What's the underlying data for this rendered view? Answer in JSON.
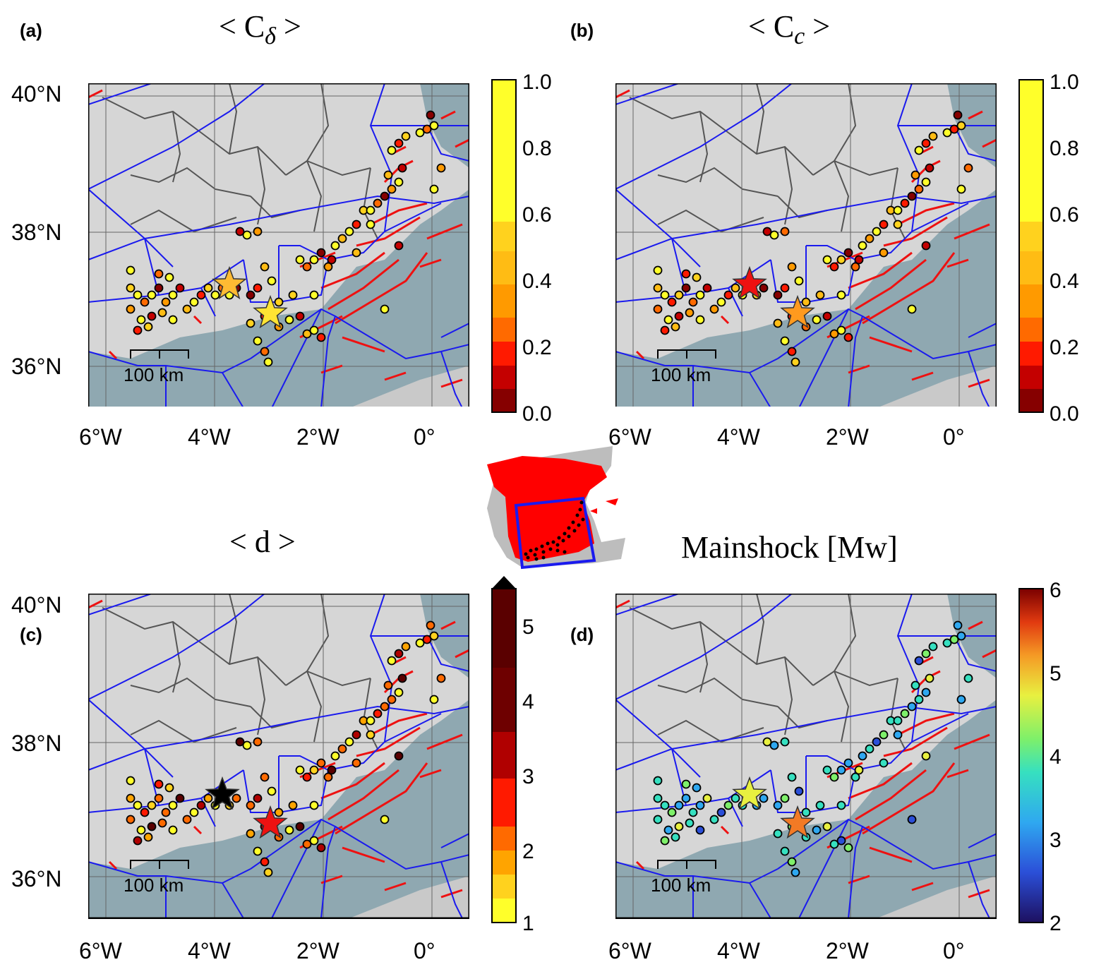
{
  "panels": [
    {
      "label": "(a)",
      "title": "< C",
      "title_sub": "δ",
      "title_end": " >",
      "colorbar": {
        "ticks": [
          "1.0",
          "0.8",
          "0.6",
          "0.4",
          "0.2",
          "0.0"
        ]
      }
    },
    {
      "label": "(b)",
      "title": "< C",
      "title_sub": "c",
      "title_end": " >",
      "colorbar": {
        "ticks": [
          "1.0",
          "0.8",
          "0.6",
          "0.4",
          "0.2",
          "0.0"
        ]
      }
    },
    {
      "label": "(c)",
      "title": "< d >",
      "title_sub": "",
      "title_end": "",
      "colorbar": {
        "ticks": [
          "5",
          "4",
          "3",
          "2",
          "1"
        ]
      }
    },
    {
      "label": "(d)",
      "title": "Mainshock [Mw]",
      "title_sub": "",
      "title_end": "",
      "colorbar": {
        "ticks": [
          "6",
          "5",
          "4",
          "3",
          "2"
        ]
      }
    }
  ],
  "lat_labels": [
    "40°N",
    "38°N",
    "36°N"
  ],
  "lon_labels": [
    "6°W",
    "4°W",
    "2°W",
    "0°"
  ],
  "scale_bar": "100 km",
  "colors": {
    "region_boxes": "#1a1aee",
    "faults": "#ee1111",
    "land": "#d6d6d6",
    "sea": "#8fa8b1",
    "inset_spain": "#ff0000",
    "inset_other": "#bdbdbd"
  },
  "legend_icons": [
    "star-mainshock-icon",
    "circle-cluster-icon"
  ]
}
